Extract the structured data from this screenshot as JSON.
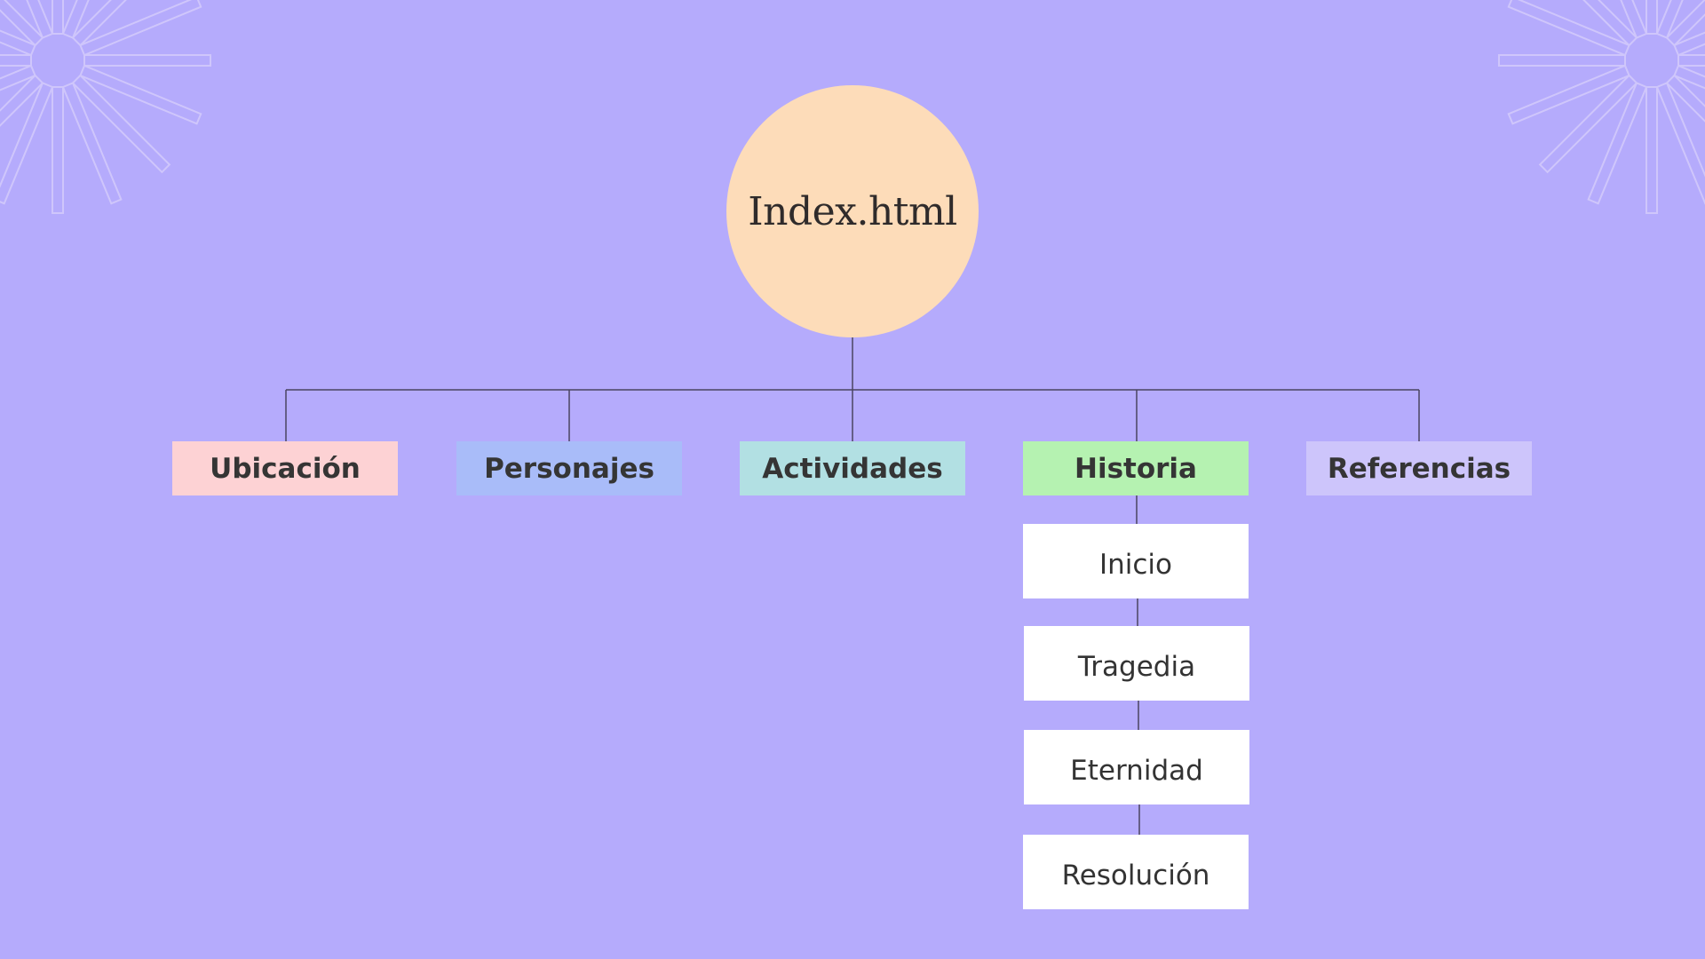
{
  "root": {
    "label": "Index.html"
  },
  "sections": [
    {
      "label": "Ubicación",
      "color": "#fdd2d4"
    },
    {
      "label": "Personajes",
      "color": "#a9bcf9"
    },
    {
      "label": "Actividades",
      "color": "#b2e0e3"
    },
    {
      "label": "Historia",
      "color": "#b5f2b1"
    },
    {
      "label": "Referencias",
      "color": "#cdc5fb"
    }
  ],
  "historia_children": [
    {
      "label": "Inicio"
    },
    {
      "label": "Tragedia"
    },
    {
      "label": "Eternidad"
    },
    {
      "label": "Resolución"
    }
  ],
  "colors": {
    "background": "#b5abfc",
    "root_fill": "#fddcb9",
    "connector": "#4a4560",
    "decoration": "#cfc6fb"
  }
}
